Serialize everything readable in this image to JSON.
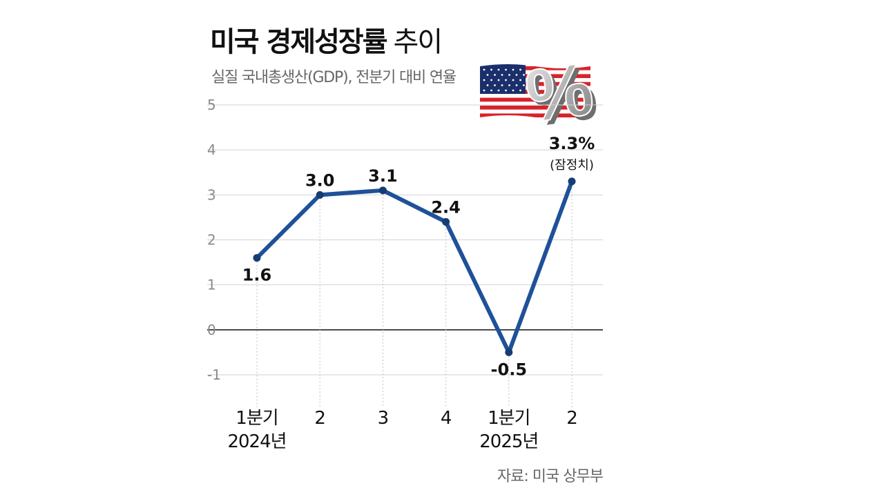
{
  "header": {
    "title_bold": "미국 경제성장률",
    "title_light": "추이",
    "subtitle": "실질 국내총생산(GDP), 전분기 대비 연율"
  },
  "source": "자료: 미국 상무부",
  "colors": {
    "line": "#1f5199",
    "point": "#163d73",
    "grid": "#d2d2d2",
    "zero_line": "#222222",
    "flag_red": "#d8232a",
    "flag_blue": "#1b2f6b"
  },
  "decor": {
    "flag_icon": "us-flag-icon",
    "percent_icon": "percent-3d-icon",
    "percent_symbol": "%"
  },
  "chart_data": {
    "type": "line",
    "title": "미국 경제성장률 추이",
    "subtitle": "실질 국내총생산(GDP), 전분기 대비 연율",
    "categories": [
      [
        "1분기",
        "2024년"
      ],
      [
        "2",
        ""
      ],
      [
        "3",
        ""
      ],
      [
        "4",
        ""
      ],
      [
        "1분기",
        "2025년"
      ],
      [
        "2",
        ""
      ]
    ],
    "values": [
      1.6,
      3.0,
      3.1,
      2.4,
      -0.5,
      3.3
    ],
    "data_labels": [
      "1.6",
      "3.0",
      "3.1",
      "2.4",
      "-0.5",
      "3.3%"
    ],
    "label_positions": [
      "below",
      "above",
      "above",
      "above",
      "below",
      "above"
    ],
    "annotations": [
      {
        "index": 5,
        "text": "(잠정치)"
      }
    ],
    "yticks": [
      "5",
      "4",
      "3",
      "2",
      "1",
      "0",
      "-1"
    ],
    "ylim": [
      -1,
      5
    ],
    "grid": true,
    "legend": "none"
  }
}
